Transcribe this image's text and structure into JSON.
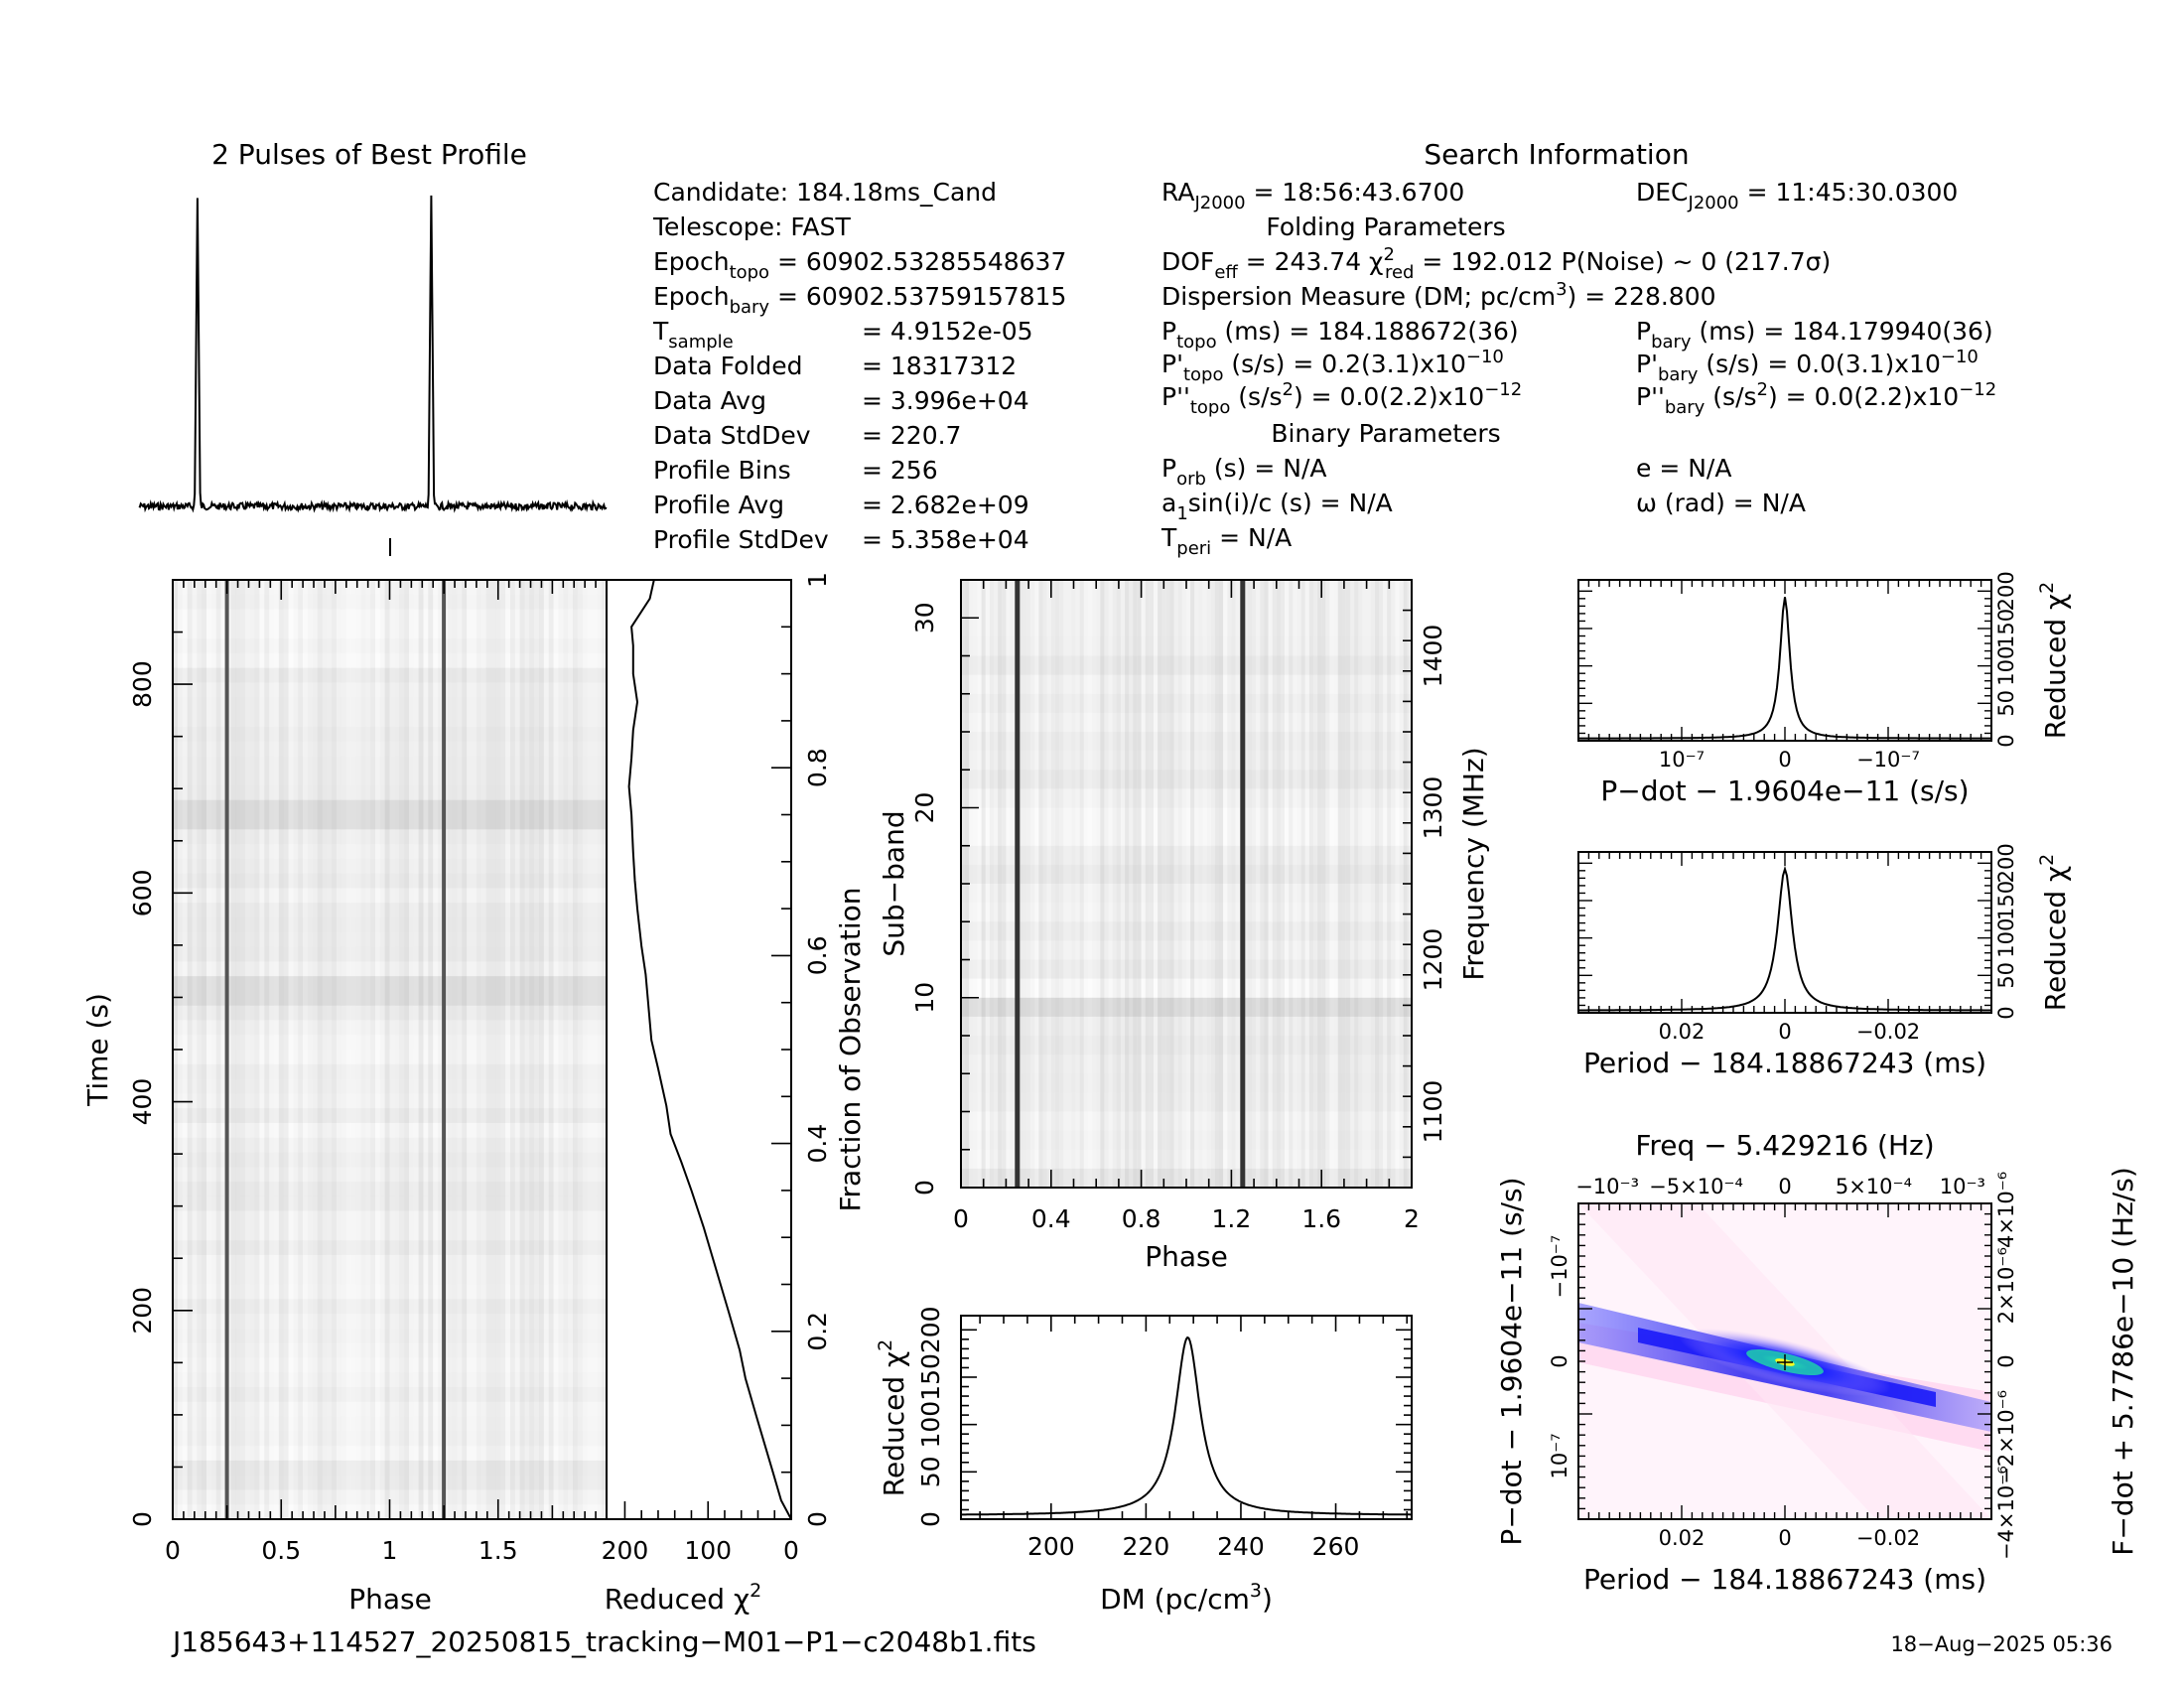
{
  "profile": {
    "title": "2 Pulses of Best Profile"
  },
  "info": {
    "col1": [
      "Candidate:  184.18ms_Cand",
      "Telescope:  FAST",
      "Epochₓ = 60902.53285548637",
      "Epoch_bary = 60902.53759157815",
      "T_sample          =  4.9152e-05",
      "Data Folded     =  18317312",
      "Data Avg          =  3.996e+04",
      "Data StdDev    =  220.7",
      "Profile Bins     =  256",
      "Profile Avg      =  2.682e+09",
      "Profile StdDev =  5.358e+04"
    ],
    "search_title": "Search Information",
    "folding_title": "Folding Parameters",
    "binary_title": "Binary Parameters",
    "ra": "RA_J2000 = 18:56:43.6700",
    "dec": "DEC_J2000 = 11:45:30.0300",
    "dof": "DOF_eff = 243.74  χ²_red = 192.012   P(Noise) ~ 0    (217.7σ)",
    "dm": "Dispersion Measure (DM; pc/cm³) = 228.800",
    "ptopo": "P_topo (ms) =  184.188672(36)",
    "pbary": "P_bary (ms) =  184.179940(36)",
    "pdtopo": "P'_topo (s/s) =  0.2(3.1)×10⁻¹⁰",
    "pdbary": "P'_bary (s/s) = 0.0(3.1)×10⁻¹⁰",
    "pddtopo": "P''_topo (s/s²) = 0.0(2.2)×10⁻¹²",
    "pddbary": "P''_bary (s/s²) = 0.0(2.2)×10⁻¹²",
    "porb": "P_orb (s) = N/A",
    "ecc": "e = N/A",
    "asini": "a₁sin(i)/c (s) = N/A",
    "omega": "ω (rad) = N/A",
    "tperi": "T_peri = N/A"
  },
  "footer": {
    "filename": "J185643+114527_20250815_tracking−M01−P1−c2048b1.fits",
    "date": "18−Aug−2025 05:36"
  },
  "chart_data": [
    {
      "type": "line",
      "name": "profile",
      "title": "2 Pulses of Best Profile",
      "x_range": [
        0,
        2
      ],
      "peak_phases": [
        0.25,
        1.25
      ]
    },
    {
      "type": "heatmap",
      "name": "time-phase",
      "xlabel": "Phase",
      "ylabel": "Time (s)",
      "xlim": [
        0,
        2
      ],
      "ylim": [
        0,
        900
      ],
      "x_ticks": [
        "0",
        "0.5",
        "1",
        "1.5"
      ],
      "y_ticks": [
        "0",
        "200",
        "400",
        "600",
        "800"
      ],
      "pulse_phases": [
        0.25,
        1.25
      ]
    },
    {
      "type": "line",
      "name": "reduced-chi2-vs-time",
      "xlabel": "Reduced χ²",
      "ylabel": "Fraction of Observation",
      "x_ticks": [
        "200",
        "100",
        "0"
      ],
      "y_ticks": [
        "0",
        "0.2",
        "0.4",
        "0.6",
        "0.8",
        "1"
      ],
      "chi2": [
        0,
        12,
        22,
        32,
        42,
        55,
        62,
        75,
        85,
        95,
        105,
        120,
        132,
        145,
        150,
        160,
        168,
        172,
        175,
        180,
        185,
        188,
        190,
        192,
        195,
        192,
        190,
        185,
        190,
        190,
        192,
        170,
        165
      ],
      "fraction": [
        0,
        0.02,
        0.05,
        0.08,
        0.11,
        0.15,
        0.18,
        0.22,
        0.25,
        0.28,
        0.31,
        0.35,
        0.38,
        0.41,
        0.44,
        0.48,
        0.51,
        0.55,
        0.58,
        0.61,
        0.65,
        0.68,
        0.71,
        0.75,
        0.78,
        0.81,
        0.84,
        0.87,
        0.9,
        0.93,
        0.95,
        0.98,
        1.0
      ]
    },
    {
      "type": "heatmap",
      "name": "subband-phase",
      "xlabel": "Phase",
      "ylabel": "Sub−band",
      "y2label": "Frequency (MHz)",
      "xlim": [
        0,
        2
      ],
      "ylim": [
        0,
        32
      ],
      "x_ticks": [
        "0",
        "0.4",
        "0.8",
        "1.2",
        "1.6",
        "2"
      ],
      "y_ticks": [
        "0",
        "10",
        "20",
        "30"
      ],
      "freq_ticks": [
        "1100",
        "1200",
        "1300",
        "1400"
      ],
      "pulse_phases": [
        0.25,
        1.25
      ]
    },
    {
      "type": "line",
      "name": "dm-curve",
      "xlabel": "DM (pc/cm³)",
      "ylabel": "Reduced χ²",
      "x_ticks": [
        "200",
        "220",
        "240",
        "260"
      ],
      "y_ticks": [
        "0",
        "50",
        "100",
        "150",
        "200"
      ],
      "xlim": [
        181,
        276
      ],
      "ylim": [
        0,
        215
      ],
      "peak_x": 228.8,
      "peak_y": 192
    },
    {
      "type": "line",
      "name": "pdot-curve",
      "xlabel": "P−dot − 1.9604e−11 (s/s)",
      "ylabel": "Reduced χ²",
      "x_ticks": [
        "10⁻⁷",
        "0",
        "−10⁻⁷"
      ],
      "y_ticks": [
        "0",
        "50",
        "100",
        "150",
        "200"
      ],
      "peak_y": 192
    },
    {
      "type": "line",
      "name": "period-curve",
      "xlabel": "Period − 184.18867243 (ms)",
      "ylabel": "Reduced χ²",
      "x_ticks": [
        "0.02",
        "0",
        "−0.02"
      ],
      "y_ticks": [
        "0",
        "50",
        "100",
        "150",
        "200"
      ],
      "peak_y": 192
    },
    {
      "type": "heatmap",
      "name": "period-pdot",
      "title": "Freq − 5.429216 (Hz)",
      "xlabel": "Period − 184.18867243 (ms)",
      "ylabel": "P−dot − 1.9604e−11 (s/s)",
      "y2label": "F−dot + 5.7786e−10 (Hz/s)",
      "x_ticks": [
        "0.02",
        "0",
        "−0.02"
      ],
      "top_ticks": [
        "−10⁻³",
        "−5×10⁻⁴",
        "0",
        "5×10⁻⁴",
        "10⁻³"
      ],
      "y_ticks": [
        "10⁻⁷",
        "0",
        "−10⁻⁷"
      ],
      "y2_ticks": [
        "−4×10⁻⁶",
        "−2×10⁻⁶",
        "0",
        "2×10⁻⁶",
        "4×10⁻⁶"
      ]
    }
  ]
}
